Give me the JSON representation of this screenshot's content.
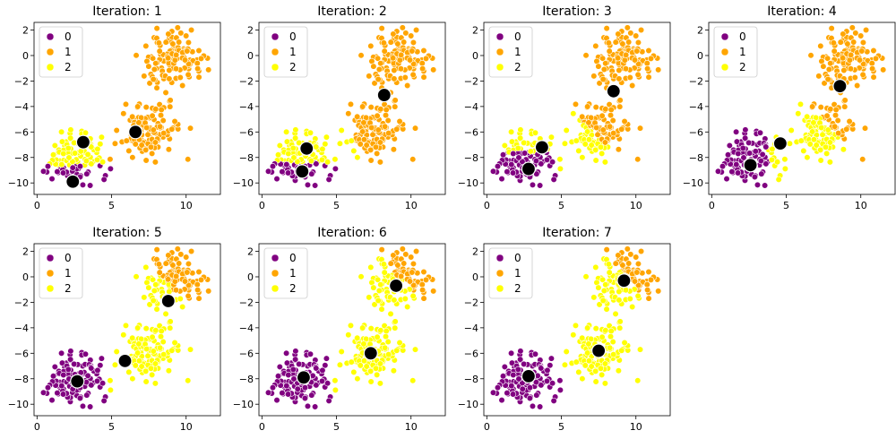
{
  "chart_data": [
    {
      "type": "scatter",
      "title": "Iteration: 1",
      "xlim": [
        -0.2,
        12.3
      ],
      "ylim": [
        -10.9,
        2.6
      ],
      "xticks": [
        0,
        5,
        10
      ],
      "yticks": [
        2,
        0,
        -2,
        -4,
        -6,
        -8,
        -10
      ],
      "xlabel": "",
      "ylabel": "",
      "legend": {
        "position": "top-left",
        "labels": [
          "0",
          "1",
          "2"
        ]
      },
      "cluster_colors": [
        "#800080",
        "#ffa500",
        "#ffff00"
      ],
      "point_cloud_seed": 42,
      "points_per_blob": 120,
      "blobs": [
        {
          "center": [
            2.5,
            -8.0
          ],
          "spread": 1.0
        },
        {
          "center": [
            7.5,
            -5.8
          ],
          "spread": 1.0
        },
        {
          "center": [
            9.0,
            -0.3
          ],
          "spread": 1.1
        }
      ],
      "regions": [
        {
          "cluster": 0,
          "polygon": [
            [
              0,
              -12
            ],
            [
              0,
              -8.6
            ],
            [
              6,
              -8.6
            ],
            [
              6,
              -12
            ]
          ]
        },
        {
          "cluster": 2,
          "polygon": [
            [
              0,
              -8.6
            ],
            [
              0,
              0
            ],
            [
              4.6,
              0
            ],
            [
              4.6,
              -8.6
            ]
          ]
        },
        {
          "cluster": 1,
          "polygon": [
            [
              4.6,
              -8.6
            ],
            [
              4.6,
              5
            ],
            [
              13,
              5
            ],
            [
              13,
              -8.6
            ]
          ]
        }
      ],
      "centroids": [
        {
          "cluster": 0,
          "x": 2.4,
          "y": -9.9
        },
        {
          "cluster": 1,
          "x": 6.6,
          "y": -6.0
        },
        {
          "cluster": 2,
          "x": 3.1,
          "y": -6.8
        }
      ]
    },
    {
      "type": "scatter",
      "title": "Iteration: 2",
      "xlim": [
        -0.2,
        12.3
      ],
      "ylim": [
        -10.9,
        2.6
      ],
      "xticks": [
        0,
        5,
        10
      ],
      "yticks": [
        2,
        0,
        -2,
        -4,
        -6,
        -8,
        -10
      ],
      "xlabel": "",
      "ylabel": "",
      "legend": {
        "position": "top-left",
        "labels": [
          "0",
          "1",
          "2"
        ]
      },
      "cluster_colors": [
        "#800080",
        "#ffa500",
        "#ffff00"
      ],
      "point_cloud_seed": 42,
      "points_per_blob": 120,
      "blobs": [
        {
          "center": [
            2.5,
            -8.0
          ],
          "spread": 1.0
        },
        {
          "center": [
            7.5,
            -5.8
          ],
          "spread": 1.0
        },
        {
          "center": [
            9.0,
            -0.3
          ],
          "spread": 1.1
        }
      ],
      "regions": [
        {
          "cluster": 0,
          "polygon": [
            [
              0,
              -12
            ],
            [
              0,
              -8.4
            ],
            [
              4.8,
              -8.4
            ],
            [
              4.8,
              -12
            ]
          ]
        },
        {
          "cluster": 2,
          "polygon": [
            [
              0,
              -8.4
            ],
            [
              0,
              0
            ],
            [
              3.0,
              0
            ],
            [
              7.0,
              -8.4
            ]
          ]
        },
        {
          "cluster": 1,
          "polygon": [
            [
              7.0,
              -8.4
            ],
            [
              3.0,
              0
            ],
            [
              3.0,
              5
            ],
            [
              13,
              5
            ],
            [
              13,
              -8.4
            ]
          ]
        }
      ],
      "centroids": [
        {
          "cluster": 0,
          "x": 2.7,
          "y": -9.1
        },
        {
          "cluster": 1,
          "x": 8.2,
          "y": -3.1
        },
        {
          "cluster": 2,
          "x": 3.0,
          "y": -7.3
        }
      ]
    },
    {
      "type": "scatter",
      "title": "Iteration: 3",
      "xlim": [
        -0.2,
        12.3
      ],
      "ylim": [
        -10.9,
        2.6
      ],
      "xticks": [
        0,
        5,
        10
      ],
      "yticks": [
        2,
        0,
        -2,
        -4,
        -6,
        -8,
        -10
      ],
      "xlabel": "",
      "ylabel": "",
      "legend": {
        "position": "top-left",
        "labels": [
          "0",
          "1",
          "2"
        ]
      },
      "cluster_colors": [
        "#800080",
        "#ffa500",
        "#ffff00"
      ],
      "point_cloud_seed": 42,
      "points_per_blob": 120,
      "blobs": [
        {
          "center": [
            2.5,
            -8.0
          ],
          "spread": 1.0
        },
        {
          "center": [
            7.5,
            -5.8
          ],
          "spread": 1.0
        },
        {
          "center": [
            9.0,
            -0.3
          ],
          "spread": 1.1
        }
      ],
      "regions": [
        {
          "cluster": 0,
          "polygon": [
            [
              0,
              -12
            ],
            [
              0,
              -7.6
            ],
            [
              4.3,
              -7.6
            ],
            [
              5.5,
              -12
            ]
          ]
        },
        {
          "cluster": 2,
          "polygon": [
            [
              0,
              -7.6
            ],
            [
              0,
              0
            ],
            [
              2.0,
              0
            ],
            [
              8.5,
              -7.6
            ]
          ]
        },
        {
          "cluster": 1,
          "polygon": [
            [
              8.5,
              -7.6
            ],
            [
              2.0,
              0
            ],
            [
              2.0,
              5
            ],
            [
              13,
              5
            ],
            [
              13,
              -7.6
            ]
          ]
        }
      ],
      "centroids": [
        {
          "cluster": 0,
          "x": 2.8,
          "y": -8.9
        },
        {
          "cluster": 1,
          "x": 8.5,
          "y": -2.8
        },
        {
          "cluster": 2,
          "x": 3.7,
          "y": -7.2
        }
      ]
    },
    {
      "type": "scatter",
      "title": "Iteration: 4",
      "xlim": [
        -0.2,
        12.3
      ],
      "ylim": [
        -10.9,
        2.6
      ],
      "xticks": [
        0,
        5,
        10
      ],
      "yticks": [
        2,
        0,
        -2,
        -4,
        -6,
        -8,
        -10
      ],
      "xlabel": "",
      "ylabel": "",
      "legend": {
        "position": "top-left",
        "labels": [
          "0",
          "1",
          "2"
        ]
      },
      "cluster_colors": [
        "#800080",
        "#ffa500",
        "#ffff00"
      ],
      "point_cloud_seed": 42,
      "points_per_blob": 120,
      "blobs": [
        {
          "center": [
            2.5,
            -8.0
          ],
          "spread": 1.0
        },
        {
          "center": [
            7.5,
            -5.8
          ],
          "spread": 1.0
        },
        {
          "center": [
            9.0,
            -0.3
          ],
          "spread": 1.1
        }
      ],
      "regions": [
        {
          "cluster": 0,
          "polygon": [
            [
              0,
              -12
            ],
            [
              0,
              -5.0
            ],
            [
              3.6,
              -5.6
            ],
            [
              4.3,
              -12
            ]
          ]
        },
        {
          "cluster": 2,
          "polygon": [
            [
              4.3,
              -12
            ],
            [
              3.6,
              -5.6
            ],
            [
              0,
              -5.0
            ],
            [
              0,
              0
            ],
            [
              3.0,
              0
            ],
            [
              10.0,
              -8.0
            ],
            [
              10.0,
              -12
            ]
          ]
        },
        {
          "cluster": 1,
          "polygon": [
            [
              10.0,
              -12
            ],
            [
              10.0,
              -8.0
            ],
            [
              3.0,
              0
            ],
            [
              3.0,
              5
            ],
            [
              13,
              5
            ],
            [
              13,
              -12
            ]
          ]
        }
      ],
      "centroids": [
        {
          "cluster": 0,
          "x": 2.6,
          "y": -8.6
        },
        {
          "cluster": 1,
          "x": 8.6,
          "y": -2.4
        },
        {
          "cluster": 2,
          "x": 4.6,
          "y": -6.9
        }
      ]
    },
    {
      "type": "scatter",
      "title": "Iteration: 5",
      "xlim": [
        -0.2,
        12.3
      ],
      "ylim": [
        -10.9,
        2.6
      ],
      "xticks": [
        0,
        5,
        10
      ],
      "yticks": [
        2,
        0,
        -2,
        -4,
        -6,
        -8,
        -10
      ],
      "xlabel": "",
      "ylabel": "",
      "legend": {
        "position": "top-left",
        "labels": [
          "0",
          "1",
          "2"
        ]
      },
      "cluster_colors": [
        "#800080",
        "#ffa500",
        "#ffff00"
      ],
      "point_cloud_seed": 42,
      "points_per_blob": 120,
      "blobs": [
        {
          "center": [
            2.5,
            -8.0
          ],
          "spread": 1.0
        },
        {
          "center": [
            7.5,
            -5.8
          ],
          "spread": 1.0
        },
        {
          "center": [
            9.0,
            -0.3
          ],
          "spread": 1.1
        }
      ],
      "regions": [
        {
          "cluster": 0,
          "polygon": [
            [
              0,
              -12
            ],
            [
              0,
              0
            ],
            [
              4.6,
              0
            ],
            [
              4.6,
              -12
            ]
          ]
        },
        {
          "cluster": 2,
          "polygon": [
            [
              4.6,
              -12
            ],
            [
              4.6,
              0
            ],
            [
              4.0,
              5
            ],
            [
              5.0,
              5
            ],
            [
              11.0,
              -3.7
            ],
            [
              11.0,
              -12
            ]
          ]
        },
        {
          "cluster": 1,
          "polygon": [
            [
              11.0,
              -12
            ],
            [
              11.0,
              -3.7
            ],
            [
              5.0,
              5
            ],
            [
              13,
              5
            ],
            [
              13,
              -12
            ]
          ]
        }
      ],
      "centroids": [
        {
          "cluster": 0,
          "x": 2.7,
          "y": -8.2
        },
        {
          "cluster": 1,
          "x": 8.8,
          "y": -1.9
        },
        {
          "cluster": 2,
          "x": 5.9,
          "y": -6.6
        }
      ]
    },
    {
      "type": "scatter",
      "title": "Iteration: 6",
      "xlim": [
        -0.2,
        12.3
      ],
      "ylim": [
        -10.9,
        2.6
      ],
      "xticks": [
        0,
        5,
        10
      ],
      "yticks": [
        2,
        0,
        -2,
        -4,
        -6,
        -8,
        -10
      ],
      "xlabel": "",
      "ylabel": "",
      "legend": {
        "position": "top-left",
        "labels": [
          "0",
          "1",
          "2"
        ]
      },
      "cluster_colors": [
        "#800080",
        "#ffa500",
        "#ffff00"
      ],
      "point_cloud_seed": 42,
      "points_per_blob": 120,
      "blobs": [
        {
          "center": [
            2.5,
            -8.0
          ],
          "spread": 1.0
        },
        {
          "center": [
            7.5,
            -5.8
          ],
          "spread": 1.0
        },
        {
          "center": [
            9.0,
            -0.3
          ],
          "spread": 1.1
        }
      ],
      "regions": [
        {
          "cluster": 0,
          "polygon": [
            [
              0,
              -12
            ],
            [
              0,
              0
            ],
            [
              4.9,
              0
            ],
            [
              4.9,
              -12
            ]
          ]
        },
        {
          "cluster": 2,
          "polygon": [
            [
              4.9,
              -12
            ],
            [
              4.9,
              0
            ],
            [
              4.0,
              5
            ],
            [
              5.0,
              5
            ],
            [
              11.5,
              -2.8
            ],
            [
              11.5,
              -12
            ]
          ]
        },
        {
          "cluster": 1,
          "polygon": [
            [
              11.5,
              -12
            ],
            [
              11.5,
              -2.8
            ],
            [
              5.0,
              5
            ],
            [
              13,
              5
            ],
            [
              13,
              -12
            ]
          ]
        }
      ],
      "centroids": [
        {
          "cluster": 0,
          "x": 2.8,
          "y": -7.9
        },
        {
          "cluster": 1,
          "x": 9.0,
          "y": -0.7
        },
        {
          "cluster": 2,
          "x": 7.3,
          "y": -6.0
        }
      ]
    },
    {
      "type": "scatter",
      "title": "Iteration: 7",
      "xlim": [
        -0.2,
        12.3
      ],
      "ylim": [
        -10.9,
        2.6
      ],
      "xticks": [
        0,
        5,
        10
      ],
      "yticks": [
        2,
        0,
        -2,
        -4,
        -6,
        -8,
        -10
      ],
      "xlabel": "",
      "ylabel": "",
      "legend": {
        "position": "top-left",
        "labels": [
          "0",
          "1",
          "2"
        ]
      },
      "cluster_colors": [
        "#800080",
        "#ffa500",
        "#ffff00"
      ],
      "point_cloud_seed": 42,
      "points_per_blob": 120,
      "blobs": [
        {
          "center": [
            2.5,
            -8.0
          ],
          "spread": 1.0
        },
        {
          "center": [
            7.5,
            -5.8
          ],
          "spread": 1.0
        },
        {
          "center": [
            9.0,
            -0.3
          ],
          "spread": 1.1
        }
      ],
      "regions": [
        {
          "cluster": 0,
          "polygon": [
            [
              0,
              -12
            ],
            [
              0,
              0
            ],
            [
              5.0,
              0
            ],
            [
              5.0,
              -12
            ]
          ]
        },
        {
          "cluster": 2,
          "polygon": [
            [
              5.0,
              -12
            ],
            [
              5.0,
              0
            ],
            [
              4.0,
              5
            ],
            [
              5.0,
              5
            ],
            [
              12.0,
              -3.2
            ],
            [
              12.0,
              -12
            ]
          ]
        },
        {
          "cluster": 1,
          "polygon": [
            [
              12.0,
              -12
            ],
            [
              12.0,
              -3.2
            ],
            [
              5.0,
              5
            ],
            [
              13,
              5
            ],
            [
              13,
              -12
            ]
          ]
        }
      ],
      "centroids": [
        {
          "cluster": 0,
          "x": 2.8,
          "y": -7.8
        },
        {
          "cluster": 1,
          "x": 9.2,
          "y": -0.3
        },
        {
          "cluster": 2,
          "x": 7.5,
          "y": -5.8
        }
      ]
    }
  ]
}
